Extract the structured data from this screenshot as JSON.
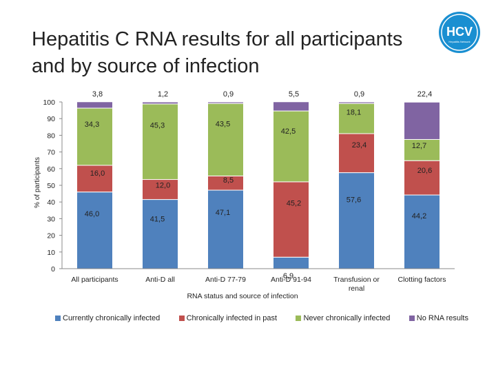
{
  "slide": {
    "title_line1": "Hepatitis C RNA results for all participants",
    "title_line2": "and by source of infection",
    "logo_text": "HCV",
    "logo_subtext": "Hepatitis Network"
  },
  "chart_data": {
    "type": "bar",
    "stacked": true,
    "title": "",
    "xlabel": "RNA status and source of infection",
    "ylabel": "% of participants",
    "ylim": [
      0,
      100
    ],
    "yticks": [
      0,
      10,
      20,
      30,
      40,
      50,
      60,
      70,
      80,
      90,
      100
    ],
    "grid": false,
    "legend_position": "bottom",
    "categories": [
      "All participants",
      "Anti-D all",
      "Anti-D 77-79",
      "Anti-D 91-94",
      "Transfusion or renal",
      "Clotting factors"
    ],
    "series": [
      {
        "name": "Currently chronically infected",
        "color": "#4F81BD",
        "values": [
          46.0,
          41.5,
          47.1,
          6.9,
          57.6,
          44.2
        ],
        "labels": [
          "46,0",
          "41,5",
          "47,1",
          "6,9",
          "57,6",
          "44,2"
        ]
      },
      {
        "name": "Chronically infected in past",
        "color": "#C0504D",
        "values": [
          16.0,
          12.0,
          8.5,
          45.2,
          23.4,
          20.6
        ],
        "labels": [
          "16,0",
          "12,0",
          "8,5",
          "45,2",
          "23,4",
          "20,6"
        ]
      },
      {
        "name": "Never chronically infected",
        "color": "#9BBB59",
        "values": [
          34.3,
          45.3,
          43.5,
          42.5,
          18.1,
          12.7
        ],
        "labels": [
          "34,3",
          "45,3",
          "43,5",
          "42,5",
          "18,1",
          "12,7"
        ]
      },
      {
        "name": "No RNA results",
        "color": "#8064A2",
        "values": [
          3.8,
          1.2,
          0.9,
          5.5,
          0.9,
          22.4
        ],
        "labels": [
          "3,8",
          "1,2",
          "0,9",
          "5,5",
          "0,9",
          "22,4"
        ]
      }
    ]
  }
}
